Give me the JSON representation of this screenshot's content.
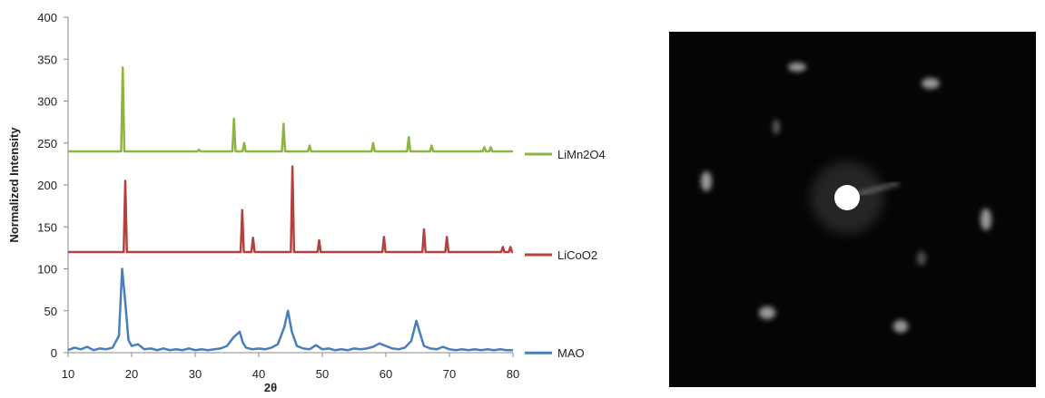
{
  "chart_data": {
    "type": "line",
    "xlabel": "2θ",
    "ylabel": "Normalized Intensity",
    "xlim": [
      10,
      80
    ],
    "xticks": [
      10,
      20,
      30,
      40,
      50,
      60,
      70,
      80
    ],
    "ylim": [
      0,
      400
    ],
    "yticks": [
      0,
      50,
      100,
      150,
      200,
      250,
      300,
      350,
      400
    ],
    "grid": false,
    "legend": "right",
    "series": [
      {
        "name": "LiMn2O4",
        "color": "#8db542",
        "x": [
          10,
          18.35,
          18.6,
          18.85,
          30.35,
          30.6,
          30.85,
          35.85,
          36.1,
          36.35,
          37.45,
          37.7,
          37.95,
          43.65,
          43.9,
          44.15,
          47.75,
          48,
          48.25,
          57.75,
          58,
          58.25,
          63.35,
          63.6,
          63.85,
          66.95,
          67.2,
          67.45,
          75.25,
          75.5,
          75.75,
          76.25,
          76.5,
          76.75,
          80
        ],
        "values": [
          240,
          240,
          340,
          240,
          240,
          242,
          240,
          240,
          279,
          240,
          240,
          250,
          240,
          240,
          273,
          240,
          240,
          247,
          240,
          240,
          250,
          240,
          240,
          257,
          240,
          240,
          247,
          240,
          240,
          245,
          240,
          240,
          245,
          240,
          240
        ]
      },
      {
        "name": "LiCoO2",
        "color": "#b5413e",
        "x": [
          10,
          18.75,
          19,
          19.25,
          37.15,
          37.4,
          37.65,
          38.85,
          39.1,
          39.35,
          45.05,
          45.3,
          45.55,
          49.25,
          49.5,
          49.75,
          59.45,
          59.7,
          59.95,
          65.75,
          66,
          66.25,
          69.35,
          69.6,
          69.85,
          78.15,
          78.4,
          78.65,
          79.35,
          79.6,
          79.85,
          80
        ],
        "values": [
          120,
          120,
          205,
          120,
          120,
          170,
          120,
          120,
          137,
          120,
          120,
          222,
          120,
          120,
          134,
          120,
          120,
          138,
          120,
          120,
          147,
          120,
          120,
          138,
          120,
          120,
          126,
          120,
          120,
          126,
          120,
          120
        ]
      },
      {
        "name": "MAO",
        "color": "#4a7ebb",
        "x": [
          10,
          11,
          12,
          13,
          14,
          15,
          16,
          17,
          18,
          18.5,
          19,
          19.5,
          20,
          21,
          22,
          23,
          24,
          25,
          26,
          27,
          28,
          29,
          30,
          31,
          32,
          33,
          34,
          35,
          36,
          37,
          37.5,
          38,
          39,
          40,
          41,
          42,
          43,
          44,
          44.6,
          45.2,
          46,
          47,
          48,
          49,
          50,
          51,
          52,
          53,
          54,
          55,
          56,
          57,
          58,
          59,
          60,
          61,
          62,
          63,
          64,
          64.8,
          65.5,
          66,
          67,
          68,
          69,
          70,
          71,
          72,
          73,
          74,
          75,
          76,
          77,
          78,
          79,
          80
        ],
        "values": [
          3,
          6,
          4,
          7,
          3,
          5,
          4,
          6,
          20,
          100,
          60,
          15,
          8,
          10,
          4,
          5,
          3,
          5,
          3,
          4,
          3,
          5,
          3,
          4,
          3,
          4,
          5,
          8,
          18,
          25,
          12,
          6,
          4,
          5,
          4,
          6,
          10,
          30,
          50,
          25,
          8,
          5,
          4,
          9,
          4,
          5,
          3,
          4,
          3,
          5,
          4,
          5,
          7,
          11,
          8,
          5,
          4,
          6,
          14,
          38,
          20,
          8,
          5,
          4,
          7,
          4,
          3,
          4,
          3,
          4,
          3,
          4,
          3,
          4,
          3,
          3
        ]
      }
    ]
  }
}
